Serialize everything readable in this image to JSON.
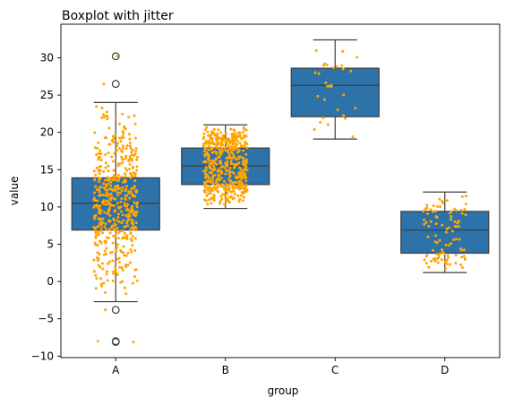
{
  "chart_data": {
    "type": "boxplot",
    "title": "Boxplot with jitter",
    "xlabel": "group",
    "ylabel": "value",
    "categories": [
      "A",
      "B",
      "C",
      "D"
    ],
    "ylim": [
      -10.2,
      34.5
    ],
    "yticks": [
      -10,
      -5,
      0,
      5,
      10,
      15,
      20,
      25,
      30
    ],
    "grid": false,
    "box_color": "#2d72a8",
    "box_edge_color": "#3d3d3d",
    "jitter_color": "#ffa500",
    "boxes": [
      {
        "name": "A",
        "whisker_low": -2.7,
        "q1": 6.9,
        "median": 10.5,
        "q3": 13.9,
        "whisker_high": 24.0,
        "outliers": [
          30.2,
          26.5,
          -3.8,
          -8.0,
          -8.1
        ],
        "n_points": 500,
        "point_range": [
          -8.1,
          30.2
        ]
      },
      {
        "name": "B",
        "whisker_low": 9.8,
        "q1": 13.0,
        "median": 15.5,
        "q3": 17.9,
        "whisker_high": 21.0,
        "outliers": [],
        "n_points": 500,
        "point_range": [
          9.8,
          21.0
        ]
      },
      {
        "name": "C",
        "whisker_low": 19.1,
        "q1": 22.1,
        "median": 26.3,
        "q3": 28.6,
        "whisker_high": 32.4,
        "outliers": [],
        "n_points": 30,
        "point_range": [
          19.1,
          32.4
        ]
      },
      {
        "name": "D",
        "whisker_low": 1.2,
        "q1": 3.8,
        "median": 6.9,
        "q3": 9.4,
        "whisker_high": 12.0,
        "outliers": [],
        "n_points": 100,
        "point_range": [
          1.2,
          12.0
        ]
      }
    ]
  }
}
